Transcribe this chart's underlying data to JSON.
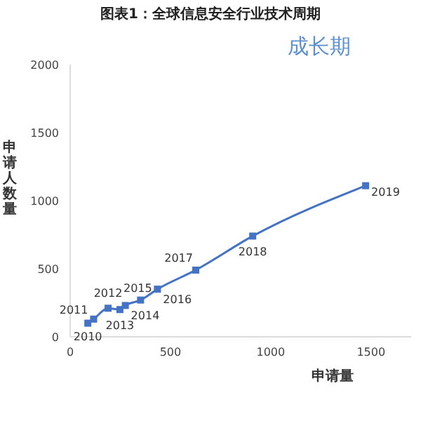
{
  "chart_data": {
    "type": "line",
    "title": "图表1：全球信息安全行业技术周期",
    "xlabel": "申请量",
    "ylabel": "申请人数量",
    "x": [
      88,
      117,
      189,
      248,
      275,
      351,
      435,
      626,
      910,
      1473
    ],
    "series": [
      {
        "color": "#4472c4",
        "values": [
          100,
          130,
          210,
          200,
          230,
          270,
          350,
          490,
          740,
          1110
        ]
      }
    ],
    "xlim": [
      0,
      1700
    ],
    "xticks": [
      0,
      500,
      1000,
      1500
    ],
    "ylim": [
      0,
      2000
    ],
    "yticks": [
      0,
      500,
      1000,
      1500,
      2000
    ],
    "marker": "square",
    "grid": false,
    "legend": false,
    "annotations": [
      "成长期",
      {
        "text": "2010",
        "x": 88,
        "y": 100
      },
      {
        "text": "2011",
        "x": 117,
        "y": 130
      },
      {
        "text": "2012",
        "x": 189,
        "y": 210
      },
      {
        "text": "2013",
        "x": 248,
        "y": 200
      },
      {
        "text": "2014",
        "x": 275,
        "y": 230
      },
      {
        "text": "2015",
        "x": 351,
        "y": 270
      },
      {
        "text": "2016",
        "x": 435,
        "y": 350
      },
      {
        "text": "2017",
        "x": 626,
        "y": 490
      },
      {
        "text": "2018",
        "x": 910,
        "y": 740
      },
      {
        "text": "2019",
        "x": 1473,
        "y": 1110
      }
    ]
  }
}
